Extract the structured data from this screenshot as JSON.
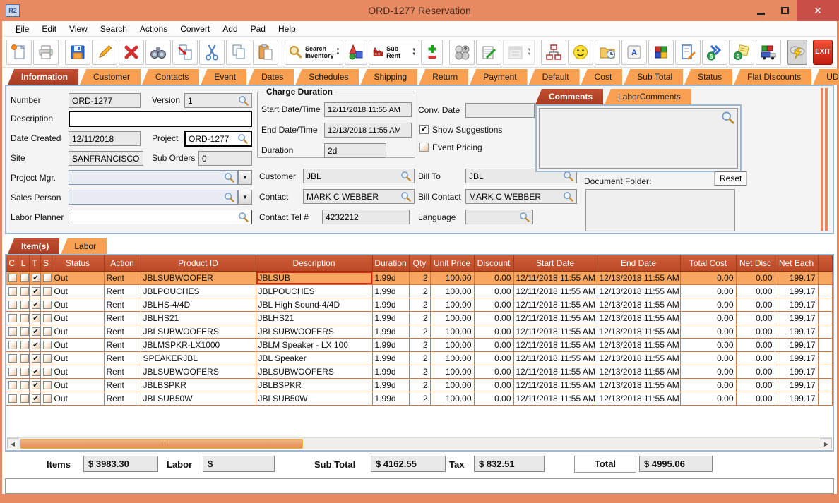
{
  "window": {
    "title": "ORD-1277 Reservation",
    "app_logo_text": "R2"
  },
  "menu": {
    "items": [
      "File",
      "Edit",
      "View",
      "Search",
      "Actions",
      "Convert",
      "Add",
      "Pad",
      "Help"
    ]
  },
  "toolbar": {
    "search_inventory_line1": "Search",
    "search_inventory_line2": "Inventory",
    "sub_rent_label": "Sub Rent",
    "exit_label": "EXIT"
  },
  "main_tabs": {
    "selected": "Information",
    "items": [
      "Information",
      "Customer",
      "Contacts",
      "Event",
      "Dates",
      "Schedules",
      "Shipping",
      "Return",
      "Payment",
      "Default",
      "Cost",
      "Sub Total",
      "Status",
      "Flat Discounts",
      "UDF"
    ]
  },
  "info": {
    "number_label": "Number",
    "number_value": "ORD-1277",
    "version_label": "Version",
    "version_value": "1",
    "description_label": "Description",
    "description_value": "",
    "date_created_label": "Date Created",
    "date_created_value": "12/11/2018",
    "project_label": "Project",
    "project_value": "ORD-1277",
    "site_label": "Site",
    "site_value": "SANFRANCISCO",
    "sub_orders_label": "Sub Orders",
    "sub_orders_value": "0",
    "project_mgr_label": "Project Mgr.",
    "project_mgr_value": "",
    "sales_person_label": "Sales Person",
    "sales_person_value": "",
    "labor_planner_label": "Labor Planner",
    "labor_planner_value": "",
    "charge_duration": {
      "group_label": "Charge Duration",
      "start_label": "Start Date/Time",
      "start_value": "12/11/2018 11:55 AM",
      "end_label": "End Date/Time",
      "end_value": "12/13/2018 11:55 AM",
      "duration_label": "Duration",
      "duration_value": "2d"
    },
    "conv_date_label": "Conv. Date",
    "conv_date_value": "",
    "show_suggestions_label": "Show Suggestions",
    "show_suggestions_checked": true,
    "event_pricing_label": "Event Pricing",
    "event_pricing_checked": false,
    "customer_label": "Customer",
    "customer_value": "JBL",
    "bill_to_label": "Bill To",
    "bill_to_value": "JBL",
    "contact_label": "Contact",
    "contact_value": "MARK C WEBBER",
    "bill_contact_label": "Bill Contact",
    "bill_contact_value": "MARK C WEBBER",
    "contact_tel_label": "Contact Tel #",
    "contact_tel_value": "4232212",
    "language_label": "Language",
    "language_value": ""
  },
  "comments": {
    "tabs": [
      "Comments",
      "LaborComments"
    ],
    "selected": "Comments",
    "comments_text": "",
    "document_folder_label": "Document Folder:",
    "reset_label": "Reset",
    "document_folder_text": ""
  },
  "items_section": {
    "tabs": [
      "Item(s)",
      "Labor"
    ],
    "selected": "Item(s)"
  },
  "table": {
    "check_columns": [
      "C",
      "L",
      "T",
      "S"
    ],
    "data_columns": [
      {
        "key": "status",
        "label": "Status"
      },
      {
        "key": "action",
        "label": "Action"
      },
      {
        "key": "product_id",
        "label": "Product ID"
      },
      {
        "key": "description",
        "label": "Description"
      },
      {
        "key": "duration",
        "label": "Duration"
      },
      {
        "key": "qty",
        "label": "Qty"
      },
      {
        "key": "unit_price",
        "label": "Unit Price"
      },
      {
        "key": "discount",
        "label": "Discount"
      },
      {
        "key": "start_date",
        "label": "Start Date"
      },
      {
        "key": "end_date",
        "label": "End Date"
      },
      {
        "key": "total_cost",
        "label": "Total Cost"
      },
      {
        "key": "net_disc",
        "label": "Net Disc"
      },
      {
        "key": "net_each",
        "label": "Net Each"
      }
    ],
    "selected_row_index": 0,
    "focused_column": "description",
    "rows": [
      {
        "checks": {
          "c": false,
          "l": false,
          "t": true,
          "s": false
        },
        "status": "Out",
        "action": "Rent",
        "product_id": "JBLSUBWOOFER",
        "description": "JBLSUB",
        "duration": "1.99d",
        "qty": "2",
        "unit_price": "100.00",
        "discount": "0.00",
        "start_date": "12/11/2018 11:55 AM",
        "end_date": "12/13/2018 11:55 AM",
        "total_cost": "0.00",
        "net_disc": "0.00",
        "net_each": "199.17"
      },
      {
        "checks": {
          "c": false,
          "l": false,
          "t": true,
          "s": false
        },
        "status": "Out",
        "action": "Rent",
        "product_id": "JBLPOUCHES",
        "description": "JBLPOUCHES",
        "duration": "1.99d",
        "qty": "2",
        "unit_price": "100.00",
        "discount": "0.00",
        "start_date": "12/11/2018 11:55 AM",
        "end_date": "12/13/2018 11:55 AM",
        "total_cost": "0.00",
        "net_disc": "0.00",
        "net_each": "199.17"
      },
      {
        "checks": {
          "c": false,
          "l": false,
          "t": true,
          "s": false
        },
        "status": "Out",
        "action": "Rent",
        "product_id": "JBLHS-4/4D",
        "description": "JBL High Sound-4/4D",
        "duration": "1.99d",
        "qty": "2",
        "unit_price": "100.00",
        "discount": "0.00",
        "start_date": "12/11/2018 11:55 AM",
        "end_date": "12/13/2018 11:55 AM",
        "total_cost": "0.00",
        "net_disc": "0.00",
        "net_each": "199.17"
      },
      {
        "checks": {
          "c": false,
          "l": false,
          "t": true,
          "s": false
        },
        "status": "Out",
        "action": "Rent",
        "product_id": "JBLHS21",
        "description": "JBLHS21",
        "duration": "1.99d",
        "qty": "2",
        "unit_price": "100.00",
        "discount": "0.00",
        "start_date": "12/11/2018 11:55 AM",
        "end_date": "12/13/2018 11:55 AM",
        "total_cost": "0.00",
        "net_disc": "0.00",
        "net_each": "199.17"
      },
      {
        "checks": {
          "c": false,
          "l": false,
          "t": true,
          "s": false
        },
        "status": "Out",
        "action": "Rent",
        "product_id": "JBLSUBWOOFERS",
        "description": "JBLSUBWOOFERS",
        "duration": "1.99d",
        "qty": "2",
        "unit_price": "100.00",
        "discount": "0.00",
        "start_date": "12/11/2018 11:55 AM",
        "end_date": "12/13/2018 11:55 AM",
        "total_cost": "0.00",
        "net_disc": "0.00",
        "net_each": "199.17"
      },
      {
        "checks": {
          "c": false,
          "l": false,
          "t": true,
          "s": false
        },
        "status": "Out",
        "action": "Rent",
        "product_id": "JBLMSPKR-LX1000",
        "description": "JBLM Speaker - LX 100",
        "duration": "1.99d",
        "qty": "2",
        "unit_price": "100.00",
        "discount": "0.00",
        "start_date": "12/11/2018 11:55 AM",
        "end_date": "12/13/2018 11:55 AM",
        "total_cost": "0.00",
        "net_disc": "0.00",
        "net_each": "199.17"
      },
      {
        "checks": {
          "c": false,
          "l": false,
          "t": true,
          "s": false
        },
        "status": "Out",
        "action": "Rent",
        "product_id": "SPEAKERJBL",
        "description": "JBL Speaker",
        "duration": "1.99d",
        "qty": "2",
        "unit_price": "100.00",
        "discount": "0.00",
        "start_date": "12/11/2018 11:55 AM",
        "end_date": "12/13/2018 11:55 AM",
        "total_cost": "0.00",
        "net_disc": "0.00",
        "net_each": "199.17"
      },
      {
        "checks": {
          "c": false,
          "l": false,
          "t": true,
          "s": false
        },
        "status": "Out",
        "action": "Rent",
        "product_id": "JBLSUBWOOFERS",
        "description": "JBLSUBWOOFERS",
        "duration": "1.99d",
        "qty": "2",
        "unit_price": "100.00",
        "discount": "0.00",
        "start_date": "12/11/2018 11:55 AM",
        "end_date": "12/13/2018 11:55 AM",
        "total_cost": "0.00",
        "net_disc": "0.00",
        "net_each": "199.17"
      },
      {
        "checks": {
          "c": false,
          "l": false,
          "t": true,
          "s": false
        },
        "status": "Out",
        "action": "Rent",
        "product_id": "JBLBSPKR",
        "description": "JBLBSPKR",
        "duration": "1.99d",
        "qty": "2",
        "unit_price": "100.00",
        "discount": "0.00",
        "start_date": "12/11/2018 11:55 AM",
        "end_date": "12/13/2018 11:55 AM",
        "total_cost": "0.00",
        "net_disc": "0.00",
        "net_each": "199.17"
      },
      {
        "checks": {
          "c": false,
          "l": false,
          "t": true,
          "s": false
        },
        "status": "Out",
        "action": "Rent",
        "product_id": "JBLSUB50W",
        "description": "JBLSUB50W",
        "duration": "1.99d",
        "qty": "2",
        "unit_price": "100.00",
        "discount": "0.00",
        "start_date": "12/11/2018 11:55 AM",
        "end_date": "12/13/2018 11:55 AM",
        "total_cost": "0.00",
        "net_disc": "0.00",
        "net_each": "199.17"
      }
    ]
  },
  "totals": {
    "items_label": "Items",
    "items_value": "$ 3983.30",
    "labor_label": "Labor",
    "labor_value": "$",
    "sub_total_label": "Sub Total",
    "sub_total_value": "$ 4162.55",
    "tax_label": "Tax",
    "tax_value": "$ 832.51",
    "total_label": "Total",
    "total_value": "$ 4995.06"
  }
}
